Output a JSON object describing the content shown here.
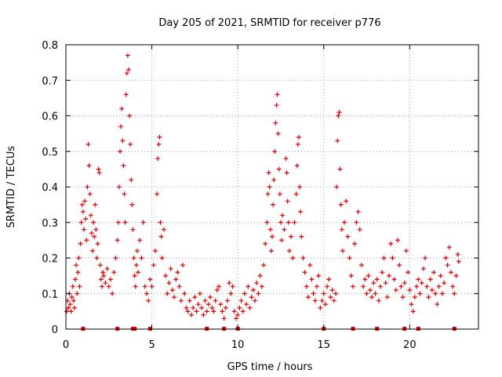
{
  "chart_data": {
    "type": "scatter",
    "title": "Day 205 of 2021, SRMTID for receiver p776",
    "xlabel": "GPS time / hours",
    "ylabel": "SRMTID / TECUs",
    "xlim": [
      0,
      24
    ],
    "ylim": [
      0,
      0.8
    ],
    "x_ticks": [
      0,
      5,
      10,
      15,
      20
    ],
    "x_tick_labels": [
      "0",
      "5",
      "10",
      "15",
      "20"
    ],
    "y_ticks": [
      0,
      0.1,
      0.2,
      0.3,
      0.4,
      0.5,
      0.6,
      0.7,
      0.8
    ],
    "y_tick_labels": [
      "0",
      "0.1",
      "0.2",
      "0.3",
      "0.4",
      "0.5",
      "0.6",
      "0.7",
      "0.8"
    ],
    "grid": true,
    "marker": "plus",
    "color": "#dd0000",
    "series": [
      {
        "name": "SRMTID",
        "points": [
          [
            0.05,
            0.05
          ],
          [
            0.1,
            0.08
          ],
          [
            0.15,
            0.06
          ],
          [
            0.2,
            0.1
          ],
          [
            0.25,
            0.07
          ],
          [
            0.3,
            0.05
          ],
          [
            0.35,
            0.09
          ],
          [
            0.4,
            0.12
          ],
          [
            0.45,
            0.08
          ],
          [
            0.5,
            0.06
          ],
          [
            0.55,
            0.14
          ],
          [
            0.6,
            0.18
          ],
          [
            0.65,
            0.1
          ],
          [
            0.7,
            0.16
          ],
          [
            0.75,
            0.2
          ],
          [
            0.8,
            0.12
          ],
          [
            0.85,
            0.24
          ],
          [
            0.9,
            0.3
          ],
          [
            0.95,
            0.35
          ],
          [
            1.0,
            0.33
          ],
          [
            1.05,
            0.28
          ],
          [
            1.1,
            0.36
          ],
          [
            1.15,
            0.31
          ],
          [
            1.2,
            0.25
          ],
          [
            1.25,
            0.4
          ],
          [
            1.3,
            0.52
          ],
          [
            1.35,
            0.46
          ],
          [
            1.4,
            0.38
          ],
          [
            1.45,
            0.32
          ],
          [
            1.5,
            0.27
          ],
          [
            1.55,
            0.22
          ],
          [
            1.6,
            0.3
          ],
          [
            1.65,
            0.26
          ],
          [
            1.7,
            0.35
          ],
          [
            1.75,
            0.28
          ],
          [
            1.8,
            0.2
          ],
          [
            1.85,
            0.24
          ],
          [
            1.9,
            0.45
          ],
          [
            1.95,
            0.44
          ],
          [
            2.0,
            0.18
          ],
          [
            2.05,
            0.14
          ],
          [
            2.1,
            0.12
          ],
          [
            2.15,
            0.16
          ],
          [
            2.2,
            0.15
          ],
          [
            2.3,
            0.13
          ],
          [
            2.4,
            0.17
          ],
          [
            2.5,
            0.12
          ],
          [
            2.6,
            0.14
          ],
          [
            2.7,
            0.1
          ],
          [
            2.8,
            0.16
          ],
          [
            2.9,
            0.2
          ],
          [
            3.0,
            0.25
          ],
          [
            3.05,
            0.3
          ],
          [
            3.1,
            0.4
          ],
          [
            3.15,
            0.5
          ],
          [
            3.2,
            0.57
          ],
          [
            3.25,
            0.62
          ],
          [
            3.3,
            0.53
          ],
          [
            3.35,
            0.46
          ],
          [
            3.4,
            0.38
          ],
          [
            3.45,
            0.3
          ],
          [
            3.5,
            0.66
          ],
          [
            3.55,
            0.72
          ],
          [
            3.6,
            0.77
          ],
          [
            3.65,
            0.73
          ],
          [
            3.7,
            0.6
          ],
          [
            3.75,
            0.52
          ],
          [
            3.8,
            0.42
          ],
          [
            3.85,
            0.35
          ],
          [
            3.9,
            0.28
          ],
          [
            3.95,
            0.2
          ],
          [
            4.0,
            0.15
          ],
          [
            4.05,
            0.12
          ],
          [
            4.1,
            0.18
          ],
          [
            4.15,
            0.22
          ],
          [
            4.2,
            0.16
          ],
          [
            4.3,
            0.25
          ],
          [
            4.4,
            0.2
          ],
          [
            4.5,
            0.3
          ],
          [
            4.6,
            0.12
          ],
          [
            4.7,
            0.1
          ],
          [
            4.8,
            0.08
          ],
          [
            4.9,
            0.14
          ],
          [
            5.0,
            0.12
          ],
          [
            5.1,
            0.18
          ],
          [
            5.2,
            0.22
          ],
          [
            5.3,
            0.38
          ],
          [
            5.35,
            0.48
          ],
          [
            5.4,
            0.52
          ],
          [
            5.45,
            0.54
          ],
          [
            5.5,
            0.3
          ],
          [
            5.55,
            0.26
          ],
          [
            5.6,
            0.2
          ],
          [
            5.7,
            0.28
          ],
          [
            5.8,
            0.15
          ],
          [
            5.9,
            0.1
          ],
          [
            6.0,
            0.13
          ],
          [
            6.1,
            0.17
          ],
          [
            6.2,
            0.11
          ],
          [
            6.3,
            0.09
          ],
          [
            6.4,
            0.14
          ],
          [
            6.5,
            0.16
          ],
          [
            6.6,
            0.12
          ],
          [
            6.7,
            0.08
          ],
          [
            6.8,
            0.18
          ],
          [
            6.9,
            0.1
          ],
          [
            7.0,
            0.06
          ],
          [
            7.1,
            0.05
          ],
          [
            7.2,
            0.08
          ],
          [
            7.3,
            0.04
          ],
          [
            7.4,
            0.06
          ],
          [
            7.5,
            0.09
          ],
          [
            7.6,
            0.05
          ],
          [
            7.7,
            0.07
          ],
          [
            7.8,
            0.1
          ],
          [
            7.9,
            0.06
          ],
          [
            8.0,
            0.04
          ],
          [
            8.1,
            0.08
          ],
          [
            8.2,
            0.05
          ],
          [
            8.3,
            0.07
          ],
          [
            8.4,
            0.09
          ],
          [
            8.5,
            0.06
          ],
          [
            8.6,
            0.05
          ],
          [
            8.7,
            0.08
          ],
          [
            8.8,
            0.11
          ],
          [
            8.9,
            0.12
          ],
          [
            9.0,
            0.07
          ],
          [
            9.1,
            0.05
          ],
          [
            9.2,
            0.03
          ],
          [
            9.3,
            0.06
          ],
          [
            9.4,
            0.08
          ],
          [
            9.5,
            0.13
          ],
          [
            9.6,
            0.1
          ],
          [
            9.7,
            0.12
          ],
          [
            9.8,
            0.05
          ],
          [
            9.9,
            0.03
          ],
          [
            10.0,
            0.04
          ],
          [
            10.1,
            0.06
          ],
          [
            10.2,
            0.08
          ],
          [
            10.3,
            0.05
          ],
          [
            10.4,
            0.1
          ],
          [
            10.5,
            0.07
          ],
          [
            10.6,
            0.12
          ],
          [
            10.7,
            0.06
          ],
          [
            10.8,
            0.09
          ],
          [
            10.9,
            0.11
          ],
          [
            11.0,
            0.08
          ],
          [
            11.1,
            0.13
          ],
          [
            11.2,
            0.1
          ],
          [
            11.3,
            0.15
          ],
          [
            11.4,
            0.12
          ],
          [
            11.5,
            0.18
          ],
          [
            11.6,
            0.24
          ],
          [
            11.7,
            0.3
          ],
          [
            11.75,
            0.38
          ],
          [
            11.8,
            0.44
          ],
          [
            11.85,
            0.4
          ],
          [
            11.9,
            0.28
          ],
          [
            11.95,
            0.22
          ],
          [
            12.0,
            0.26
          ],
          [
            12.05,
            0.35
          ],
          [
            12.1,
            0.42
          ],
          [
            12.15,
            0.5
          ],
          [
            12.2,
            0.58
          ],
          [
            12.25,
            0.63
          ],
          [
            12.3,
            0.66
          ],
          [
            12.35,
            0.55
          ],
          [
            12.4,
            0.45
          ],
          [
            12.45,
            0.38
          ],
          [
            12.5,
            0.3
          ],
          [
            12.55,
            0.25
          ],
          [
            12.6,
            0.32
          ],
          [
            12.7,
            0.28
          ],
          [
            12.8,
            0.48
          ],
          [
            12.85,
            0.44
          ],
          [
            12.9,
            0.36
          ],
          [
            12.95,
            0.3
          ],
          [
            13.0,
            0.22
          ],
          [
            13.1,
            0.26
          ],
          [
            13.2,
            0.2
          ],
          [
            13.3,
            0.3
          ],
          [
            13.4,
            0.38
          ],
          [
            13.45,
            0.46
          ],
          [
            13.5,
            0.52
          ],
          [
            13.55,
            0.54
          ],
          [
            13.6,
            0.4
          ],
          [
            13.65,
            0.33
          ],
          [
            13.7,
            0.26
          ],
          [
            13.8,
            0.2
          ],
          [
            13.9,
            0.16
          ],
          [
            14.0,
            0.12
          ],
          [
            14.1,
            0.09
          ],
          [
            14.2,
            0.18
          ],
          [
            14.3,
            0.14
          ],
          [
            14.4,
            0.1
          ],
          [
            14.5,
            0.08
          ],
          [
            14.6,
            0.12
          ],
          [
            14.7,
            0.15
          ],
          [
            14.8,
            0.06
          ],
          [
            14.9,
            0.08
          ],
          [
            15.0,
            0.1
          ],
          [
            15.1,
            0.07
          ],
          [
            15.2,
            0.12
          ],
          [
            15.3,
            0.14
          ],
          [
            15.4,
            0.09
          ],
          [
            15.5,
            0.11
          ],
          [
            15.6,
            0.08
          ],
          [
            15.7,
            0.1
          ],
          [
            15.75,
            0.4
          ],
          [
            15.8,
            0.53
          ],
          [
            15.85,
            0.6
          ],
          [
            15.9,
            0.61
          ],
          [
            15.95,
            0.45
          ],
          [
            16.0,
            0.35
          ],
          [
            16.05,
            0.28
          ],
          [
            16.1,
            0.22
          ],
          [
            16.2,
            0.3
          ],
          [
            16.3,
            0.36
          ],
          [
            16.4,
            0.26
          ],
          [
            16.5,
            0.2
          ],
          [
            16.6,
            0.15
          ],
          [
            16.7,
            0.12
          ],
          [
            16.8,
            0.24
          ],
          [
            16.9,
            0.3
          ],
          [
            17.0,
            0.33
          ],
          [
            17.1,
            0.28
          ],
          [
            17.2,
            0.18
          ],
          [
            17.3,
            0.12
          ],
          [
            17.4,
            0.14
          ],
          [
            17.5,
            0.1
          ],
          [
            17.6,
            0.15
          ],
          [
            17.7,
            0.11
          ],
          [
            17.8,
            0.09
          ],
          [
            17.9,
            0.13
          ],
          [
            18.0,
            0.1
          ],
          [
            18.1,
            0.14
          ],
          [
            18.2,
            0.08
          ],
          [
            18.3,
            0.12
          ],
          [
            18.4,
            0.16
          ],
          [
            18.5,
            0.2
          ],
          [
            18.6,
            0.13
          ],
          [
            18.7,
            0.09
          ],
          [
            18.8,
            0.15
          ],
          [
            18.9,
            0.24
          ],
          [
            19.0,
            0.2
          ],
          [
            19.1,
            0.14
          ],
          [
            19.2,
            0.11
          ],
          [
            19.3,
            0.25
          ],
          [
            19.4,
            0.18
          ],
          [
            19.5,
            0.12
          ],
          [
            19.6,
            0.09
          ],
          [
            19.7,
            0.13
          ],
          [
            19.8,
            0.22
          ],
          [
            19.9,
            0.16
          ],
          [
            20.0,
            0.11
          ],
          [
            20.1,
            0.07
          ],
          [
            20.2,
            0.05
          ],
          [
            20.3,
            0.09
          ],
          [
            20.4,
            0.12
          ],
          [
            20.5,
            0.14
          ],
          [
            20.6,
            0.1
          ],
          [
            20.7,
            0.13
          ],
          [
            20.8,
            0.17
          ],
          [
            20.9,
            0.2
          ],
          [
            21.0,
            0.12
          ],
          [
            21.1,
            0.09
          ],
          [
            21.2,
            0.14
          ],
          [
            21.3,
            0.11
          ],
          [
            21.4,
            0.16
          ],
          [
            21.5,
            0.1
          ],
          [
            21.6,
            0.07
          ],
          [
            21.7,
            0.12
          ],
          [
            21.8,
            0.15
          ],
          [
            21.9,
            0.1
          ],
          [
            22.0,
            0.13
          ],
          [
            22.1,
            0.2
          ],
          [
            22.2,
            0.18
          ],
          [
            22.3,
            0.23
          ],
          [
            22.4,
            0.16
          ],
          [
            22.5,
            0.12
          ],
          [
            22.6,
            0.1
          ],
          [
            22.7,
            0.15
          ],
          [
            22.8,
            0.21
          ],
          [
            22.85,
            0.19
          ]
        ]
      }
    ],
    "bottom_markers": [
      1.0,
      3.0,
      3.9,
      4.0,
      4.9,
      8.2,
      9.2,
      10.0,
      15.0,
      16.7,
      18.1,
      19.7,
      20.5,
      22.6
    ]
  }
}
